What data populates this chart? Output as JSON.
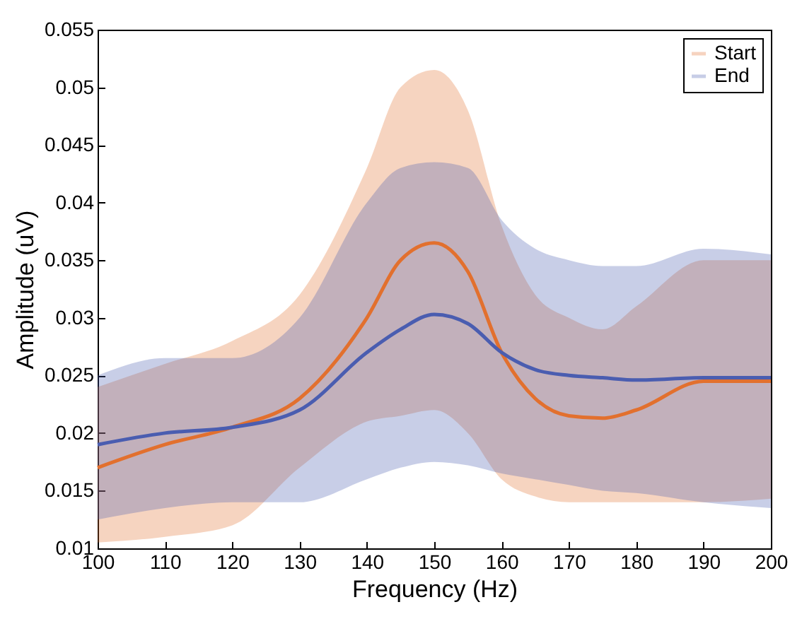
{
  "chart_data": {
    "type": "line",
    "xlabel": "Frequency (Hz)",
    "ylabel": "Amplitude (uV)",
    "x": [
      100,
      110,
      120,
      130,
      140,
      145,
      150,
      155,
      160,
      165,
      170,
      175,
      180,
      190,
      200
    ],
    "series": [
      {
        "name": "Start",
        "color": "#e2702e",
        "values": [
          0.017,
          0.019,
          0.0205,
          0.023,
          0.03,
          0.035,
          0.0365,
          0.034,
          0.027,
          0.023,
          0.0215,
          0.0213,
          0.022,
          0.0245,
          0.0245
        ],
        "lower": [
          0.0105,
          0.011,
          0.012,
          0.017,
          0.021,
          0.0215,
          0.022,
          0.02,
          0.016,
          0.0145,
          0.014,
          0.014,
          0.014,
          0.014,
          0.0143
        ],
        "upper": [
          0.024,
          0.026,
          0.028,
          0.032,
          0.043,
          0.05,
          0.0515,
          0.048,
          0.038,
          0.032,
          0.03,
          0.029,
          0.031,
          0.035,
          0.035
        ]
      },
      {
        "name": "End",
        "color": "#4a5db0",
        "values": [
          0.019,
          0.02,
          0.0205,
          0.022,
          0.027,
          0.029,
          0.0303,
          0.0295,
          0.027,
          0.0255,
          0.025,
          0.0248,
          0.0246,
          0.0248,
          0.0248
        ],
        "lower": [
          0.0125,
          0.0135,
          0.014,
          0.014,
          0.016,
          0.017,
          0.0175,
          0.0172,
          0.0165,
          0.016,
          0.0155,
          0.015,
          0.0148,
          0.014,
          0.0135
        ],
        "upper": [
          0.025,
          0.0265,
          0.0265,
          0.03,
          0.04,
          0.043,
          0.0435,
          0.043,
          0.0385,
          0.036,
          0.035,
          0.0345,
          0.0345,
          0.036,
          0.0355
        ]
      }
    ],
    "xlim": [
      100,
      200
    ],
    "xticks": [
      100,
      110,
      120,
      130,
      140,
      150,
      160,
      170,
      180,
      190,
      200
    ],
    "ylim": [
      0.01,
      0.055
    ],
    "yticks": [
      0.01,
      0.015,
      0.02,
      0.025,
      0.03,
      0.035,
      0.04,
      0.045,
      0.05,
      0.055
    ],
    "legend": "top right",
    "grid": false
  }
}
